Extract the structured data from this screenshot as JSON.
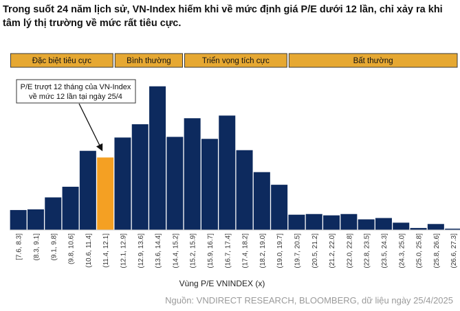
{
  "title": "Trong suốt 24 năm lịch sử, VN-Index hiếm khi về mức định giá P/E dưới 12 lần, chỉ xảy ra khi tâm lý thị trường về mức rất tiêu cực.",
  "source": "Nguồn: VNDIRECT RESEARCH, BLOOMBERG, dữ liệu ngày 25/4/2025",
  "colors": {
    "bar": "#0d2a5e",
    "highlight": "#f4a023",
    "band": "#e6a832",
    "band_border": "#3a3a3a"
  },
  "zones": [
    {
      "label": "Đặc biệt tiêu cực",
      "from": 0,
      "to": 5
    },
    {
      "label": "Bình thường",
      "from": 6,
      "to": 9
    },
    {
      "label": "Triển vọng tích cực",
      "from": 10,
      "to": 15
    },
    {
      "label": "Bất thường",
      "from": 16,
      "to": 25
    }
  ],
  "callout": {
    "text_line1": "P/E trượt 12 tháng của VN-Index",
    "text_line2": "về mức 12 lần tại ngày 25/4",
    "target_index": 5
  },
  "chart_data": {
    "type": "bar",
    "title": "",
    "xlabel": "Vùng P/E VNINDEX (x)",
    "ylabel": "",
    "grid": false,
    "categories": [
      "[7.6, 8.3]",
      "(8.3, 9.1]",
      "(9.1, 9.8]",
      "(9.8, 10.6]",
      "(10.6, 11.4]",
      "(11.4, 12.1]",
      "(12.1, 12.9]",
      "(12.9, 13.6]",
      "(13.6, 14.4]",
      "(14.4, 15.2]",
      "(15.2, 15.9]",
      "(15.9, 16.7]",
      "(16.7, 17.4]",
      "(17.4, 18.2]",
      "(18.2, 19.0]",
      "(19.0, 19.7]",
      "(19.7, 20.5]",
      "(20.5, 21.2]",
      "(21.2, 22.0]",
      "(22.0, 22.8]",
      "(22.8, 23.5]",
      "(23.5, 24.3]",
      "(24.3, 25.0]",
      "(25.0, 25.8]",
      "(25.8, 26.6]",
      "(26.6, 27.3]"
    ],
    "values": [
      30,
      31,
      49,
      65,
      119,
      109,
      139,
      159,
      216,
      140,
      168,
      137,
      172,
      120,
      87,
      68,
      23,
      24,
      22,
      24,
      16,
      18,
      11,
      3,
      9,
      2
    ],
    "highlight_index": 5,
    "ylim": [
      0,
      225
    ]
  }
}
